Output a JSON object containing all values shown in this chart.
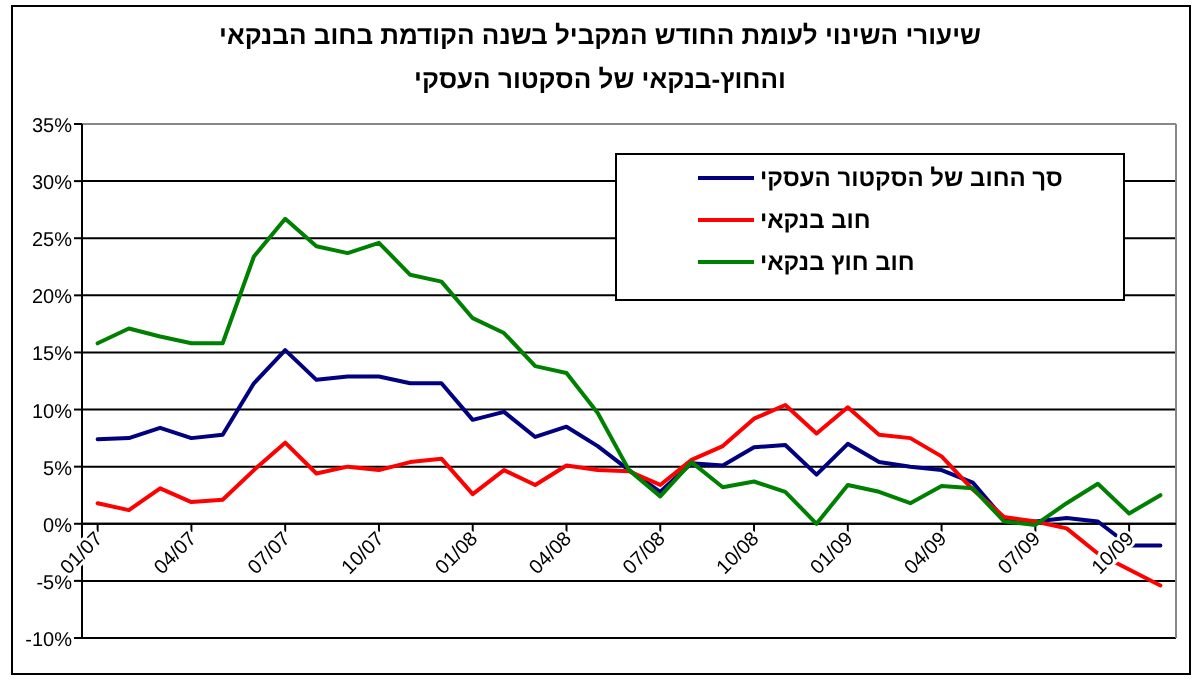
{
  "chart_data": {
    "type": "line",
    "title": "שיעורי השינוי לעומת החודש המקביל בשנה הקודמת בחוב הבנקאי",
    "subtitle": "והחוץ-בנקאי של הסקטור העסקי",
    "categories": [
      "01/07",
      null,
      null,
      "04/07",
      null,
      null,
      "07/07",
      null,
      null,
      "10/07",
      null,
      null,
      "01/08",
      null,
      null,
      "04/08",
      null,
      null,
      "07/08",
      null,
      null,
      "10/08",
      null,
      null,
      "01/09",
      null,
      null,
      "04/09",
      null,
      null,
      "07/09",
      null,
      null,
      "10/09",
      null
    ],
    "series": [
      {
        "name": "סך החוב של הסקטור העסקי",
        "color": "#000080",
        "values": [
          7.4,
          7.5,
          8.4,
          7.5,
          7.8,
          12.3,
          15.2,
          12.6,
          12.9,
          12.9,
          12.3,
          12.3,
          9.1,
          9.8,
          7.6,
          8.5,
          6.8,
          4.7,
          2.8,
          5.3,
          5.1,
          6.7,
          6.9,
          4.3,
          7.0,
          5.4,
          5.0,
          4.7,
          3.6,
          0.4,
          0.2,
          0.5,
          0.2,
          -1.9,
          -1.9
        ]
      },
      {
        "name": "חוב בנקאי",
        "color": "#ff0000",
        "values": [
          1.8,
          1.2,
          3.1,
          1.9,
          2.1,
          4.7,
          7.1,
          4.4,
          5.0,
          4.7,
          5.4,
          5.7,
          2.6,
          4.7,
          3.4,
          5.1,
          4.7,
          4.6,
          3.4,
          5.6,
          6.8,
          9.2,
          10.4,
          7.9,
          10.2,
          7.8,
          7.5,
          5.9,
          3.0,
          0.6,
          0.2,
          -0.4,
          -2.6,
          -4.0,
          -5.4
        ]
      },
      {
        "name": "חוב חוץ בנקאי",
        "color": "#008000",
        "values": [
          15.8,
          17.1,
          16.4,
          15.8,
          15.8,
          23.4,
          26.7,
          24.3,
          23.7,
          24.6,
          21.8,
          21.2,
          18.0,
          16.7,
          13.8,
          13.2,
          9.7,
          4.7,
          2.4,
          5.4,
          3.2,
          3.7,
          2.8,
          0.0,
          3.4,
          2.8,
          1.8,
          3.3,
          3.1,
          0.2,
          -0.1,
          1.8,
          3.5,
          0.9,
          2.5
        ]
      }
    ],
    "ylim": [
      -10,
      35
    ],
    "yticks": [
      {
        "value": -10,
        "label": "-10%"
      },
      {
        "value": -5,
        "label": "-5%"
      },
      {
        "value": 0,
        "label": "0%"
      },
      {
        "value": 5,
        "label": "5%"
      },
      {
        "value": 10,
        "label": "10%"
      },
      {
        "value": 15,
        "label": "15%"
      },
      {
        "value": 20,
        "label": "20%"
      },
      {
        "value": 25,
        "label": "25%"
      },
      {
        "value": 30,
        "label": "30%"
      },
      {
        "value": 35,
        "label": "35%"
      }
    ],
    "grid": "y",
    "legend": "top right",
    "marker": "none",
    "line_style": "solid"
  }
}
